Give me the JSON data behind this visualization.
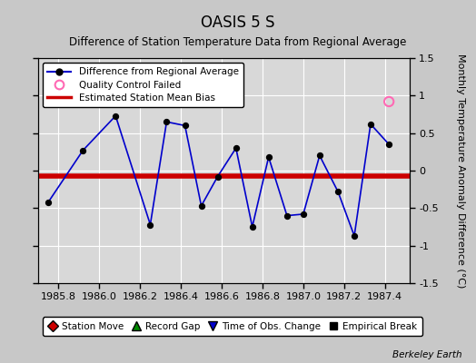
{
  "title": "OASIS 5 S",
  "subtitle": "Difference of Station Temperature Data from Regional Average",
  "ylabel": "Monthly Temperature Anomaly Difference (°C)",
  "xlabel_ticks": [
    1985.8,
    1986.0,
    1986.2,
    1986.4,
    1986.6,
    1986.8,
    1987.0,
    1987.2,
    1987.4
  ],
  "xlim": [
    1985.7,
    1987.52
  ],
  "ylim": [
    -1.5,
    1.5
  ],
  "yticks": [
    -1.5,
    -1.0,
    -0.5,
    0.0,
    0.5,
    1.0,
    1.5
  ],
  "ytick_labels": [
    "-1.5",
    "-1",
    "-0.5",
    "0",
    "0.5",
    "1",
    "1.5"
  ],
  "bias_line": -0.07,
  "x_data": [
    1985.75,
    1985.92,
    1986.08,
    1986.25,
    1986.33,
    1986.42,
    1986.5,
    1986.58,
    1986.67,
    1986.75,
    1986.83,
    1986.92,
    1987.0,
    1987.08,
    1987.17,
    1987.25,
    1987.33,
    1987.42
  ],
  "y_data": [
    -0.42,
    0.27,
    0.73,
    -0.72,
    0.65,
    0.6,
    -0.47,
    -0.08,
    0.3,
    -0.75,
    0.18,
    -0.6,
    -0.58,
    0.2,
    -0.28,
    -0.87,
    0.62,
    0.35
  ],
  "qc_failed_x": [
    1987.42
  ],
  "qc_failed_y": [
    0.92
  ],
  "line_color": "#0000cc",
  "dot_color": "#000000",
  "bias_color": "#cc0000",
  "background_color": "#c8c8c8",
  "plot_bg_color": "#d8d8d8",
  "grid_color": "#ffffff",
  "watermark": "Berkeley Earth",
  "leg1_label0": "Difference from Regional Average",
  "leg1_label1": "Quality Control Failed",
  "leg1_label2": "Estimated Station Mean Bias",
  "leg2_label0": "Station Move",
  "leg2_label1": "Record Gap",
  "leg2_label2": "Time of Obs. Change",
  "leg2_label3": "Empirical Break",
  "leg2_color0": "#cc0000",
  "leg2_color1": "#008800",
  "leg2_color2": "#0000cc",
  "leg2_color3": "#000000"
}
